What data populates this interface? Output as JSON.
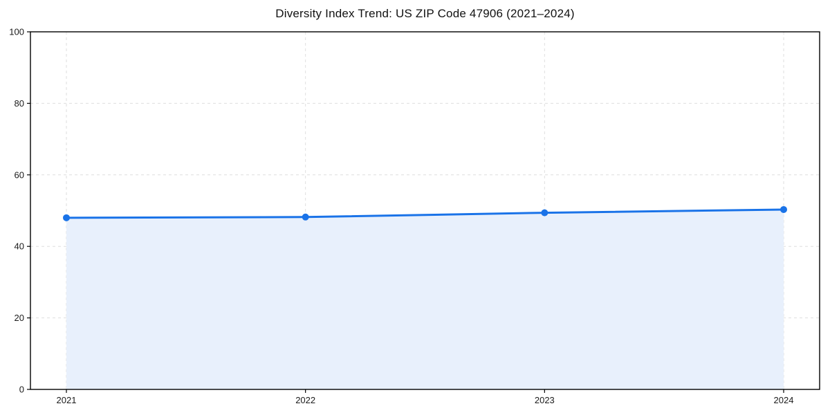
{
  "chart_data": {
    "type": "line",
    "title": "Diversity Index Trend: US ZIP Code 47906 (2021–2024)",
    "x": [
      "2021",
      "2022",
      "2023",
      "2024"
    ],
    "series": [
      {
        "name": "Diversity Index",
        "values": [
          48.0,
          48.2,
          49.4,
          50.3
        ]
      }
    ],
    "xlabel": "",
    "ylabel": "",
    "ylim": [
      0,
      100
    ],
    "yticks": [
      0,
      20,
      40,
      60,
      80,
      100
    ],
    "grid": "dashed, both axes",
    "legend": "none",
    "area_fill": true,
    "marker": "circle",
    "colors": {
      "line": "#1a73e8",
      "marker": "#1a73e8",
      "fill": "#e8f0fc",
      "grid": "#dedede",
      "axis": "#000000",
      "tick_text": "#1a1a1a",
      "background": "#ffffff"
    }
  }
}
